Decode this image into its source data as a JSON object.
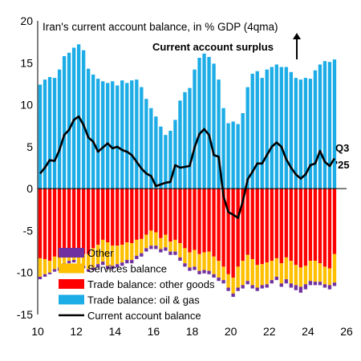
{
  "chart_data": {
    "type": "bar",
    "title": "Iran's current account balance, in % GDP (4qma)",
    "annotation_surplus": "Current account surplus",
    "annotation_last": [
      "Q3",
      "'25"
    ],
    "x_ticks": [
      "10",
      "12",
      "14",
      "16",
      "18",
      "20",
      "22",
      "24",
      "26"
    ],
    "y_ticks": [
      "20",
      "15",
      "10",
      "5",
      "0",
      "-5",
      "-10",
      "-15"
    ],
    "xlim": [
      2010,
      2026
    ],
    "ylim": [
      -15,
      20
    ],
    "grid": false,
    "legend_position": "lower-left",
    "colors": {
      "other": "#7030A0",
      "services": "#FFC000",
      "trade_other": "#FF0000",
      "oil_gas": "#1CACE6",
      "current_account": "#000000"
    },
    "legend": [
      {
        "key": "other",
        "label": "Other",
        "kind": "box"
      },
      {
        "key": "services",
        "label": "Services balance",
        "kind": "box"
      },
      {
        "key": "trade_other",
        "label": "Trade balance: other goods",
        "kind": "box"
      },
      {
        "key": "oil_gas",
        "label": "Trade balance: oil & gas",
        "kind": "box"
      },
      {
        "key": "current_account",
        "label": "Current account balance",
        "kind": "line"
      }
    ],
    "quarters_start": 2010.0,
    "quarter_step": 0.25,
    "oil_gas": [
      12.4,
      13.0,
      13.3,
      13.2,
      14.2,
      15.8,
      16.2,
      16.8,
      17.2,
      16.5,
      14.3,
      13.6,
      13.1,
      12.8,
      12.6,
      12.8,
      12.3,
      12.9,
      12.6,
      12.9,
      13.0,
      12.1,
      10.7,
      9.6,
      8.6,
      7.4,
      6.4,
      6.9,
      8.2,
      10.5,
      11.5,
      12.0,
      14.2,
      15.6,
      16.1,
      15.7,
      14.9,
      13.0,
      9.6,
      7.8,
      8.0,
      7.7,
      9.0,
      12.1,
      13.7,
      14.0,
      13.2,
      14.2,
      14.5,
      14.8,
      14.5,
      14.5,
      13.9,
      13.2,
      13.0,
      13.2,
      13.1,
      14.1,
      14.8,
      15.2,
      15.1,
      15.4
    ],
    "trade_other": [
      -8.3,
      -8.4,
      -8.6,
      -8.1,
      -8.2,
      -7.6,
      -7.2,
      -7.1,
      -7.6,
      -7.8,
      -7.8,
      -7.1,
      -6.7,
      -6.1,
      -6.4,
      -6.8,
      -6.8,
      -6.7,
      -6.4,
      -6.5,
      -6.1,
      -6.0,
      -5.5,
      -5.0,
      -5.2,
      -5.9,
      -5.5,
      -6.3,
      -6.1,
      -6.5,
      -7.1,
      -7.6,
      -7.3,
      -7.8,
      -7.6,
      -7.5,
      -8.1,
      -8.6,
      -9.3,
      -10.2,
      -10.6,
      -9.3,
      -8.6,
      -7.9,
      -8.4,
      -9.1,
      -9.0,
      -8.8,
      -8.6,
      -8.3,
      -8.9,
      -8.2,
      -8.6,
      -9.1,
      -9.4,
      -9.2,
      -8.6,
      -8.6,
      -8.9,
      -9.3,
      -9.5,
      -7.8
    ],
    "services": [
      -2.2,
      -1.8,
      -1.4,
      -1.5,
      -1.2,
      -1.3,
      -1.4,
      -1.4,
      -1.5,
      -1.4,
      -1.8,
      -2.3,
      -2.3,
      -2.6,
      -2.8,
      -2.4,
      -2.2,
      -2.1,
      -2.1,
      -2.0,
      -1.9,
      -1.7,
      -1.6,
      -1.8,
      -1.6,
      -1.3,
      -1.5,
      -1.2,
      -1.4,
      -1.7,
      -1.8,
      -1.8,
      -2.0,
      -2.0,
      -2.1,
      -2.3,
      -2.1,
      -2.0,
      -1.6,
      -1.6,
      -1.9,
      -2.5,
      -2.9,
      -3.1,
      -3.1,
      -2.7,
      -2.5,
      -2.6,
      -2.3,
      -2.2,
      -2.4,
      -2.6,
      -2.7,
      -2.4,
      -2.3,
      -2.2,
      -2.4,
      -2.5,
      -2.2,
      -2.1,
      -2.0,
      -3.4
    ],
    "other": [
      -0.3,
      -0.3,
      -0.2,
      -0.3,
      -0.4,
      -0.3,
      -0.3,
      -0.3,
      -0.3,
      -0.3,
      -0.3,
      -0.3,
      -0.4,
      -0.4,
      -0.4,
      -0.4,
      -0.4,
      -0.4,
      -0.4,
      -0.4,
      -0.4,
      -0.4,
      -0.4,
      -0.4,
      -0.4,
      -0.4,
      -0.4,
      -0.4,
      -0.4,
      -0.4,
      -0.4,
      -0.4,
      -0.4,
      -0.4,
      -0.4,
      -0.4,
      -0.4,
      -0.4,
      -0.4,
      -0.4,
      -0.4,
      -0.4,
      -0.4,
      -0.4,
      -0.4,
      -0.4,
      -0.4,
      -0.4,
      -0.4,
      -0.4,
      -0.4,
      -0.5,
      -0.5,
      -0.6,
      -0.7,
      -0.6,
      -0.5,
      -0.4,
      -0.4,
      -0.4,
      -0.5,
      -0.4
    ],
    "current_account": [
      1.8,
      2.5,
      3.4,
      3.3,
      4.6,
      6.4,
      7.0,
      8.2,
      8.6,
      7.6,
      6.1,
      5.6,
      4.4,
      4.9,
      5.4,
      4.8,
      5.0,
      4.6,
      4.4,
      4.0,
      3.2,
      2.4,
      1.8,
      1.5,
      0.3,
      0.5,
      0.7,
      0.8,
      2.8,
      2.5,
      2.6,
      2.7,
      4.9,
      6.5,
      7.1,
      6.4,
      4.0,
      3.8,
      -0.9,
      -2.8,
      -3.1,
      -3.5,
      -1.5,
      1.1,
      2.0,
      3.0,
      3.0,
      4.0,
      5.0,
      5.5,
      5.0,
      3.5,
      2.5,
      1.7,
      1.2,
      1.7,
      2.8,
      3.0,
      4.5,
      3.2,
      2.7,
      3.6
    ]
  }
}
